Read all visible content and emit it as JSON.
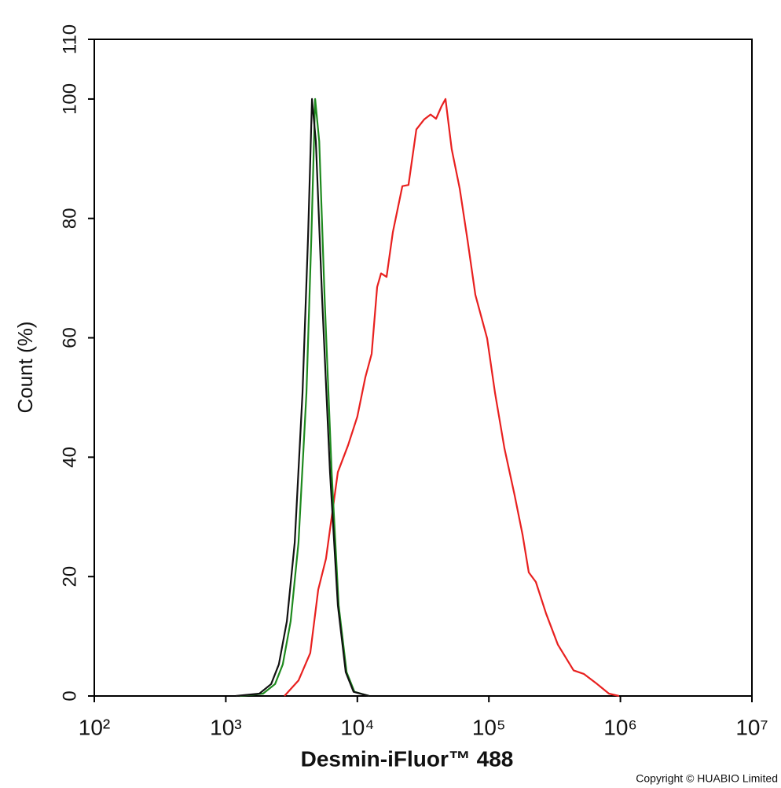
{
  "chart_data": {
    "type": "line",
    "x_label": "Desmin-iFluor™ 488",
    "y_label": "Count  (%)",
    "footnote": "Copyright © HUABIO Limited",
    "xlog": true,
    "xlim": [
      100,
      10000000
    ],
    "ylim": [
      0,
      110
    ],
    "xticks": [
      {
        "value": 100,
        "label": "10²"
      },
      {
        "value": 1000,
        "label": "10³"
      },
      {
        "value": 10000,
        "label": "10⁴"
      },
      {
        "value": 100000,
        "label": "10⁵"
      },
      {
        "value": 1000000,
        "label": "10⁶"
      },
      {
        "value": 10000000,
        "label": "10⁷"
      }
    ],
    "yticks": [
      0,
      20,
      40,
      60,
      80,
      100,
      110
    ],
    "series": [
      {
        "color": "#e8201f",
        "x": [
          2790,
          3570,
          4390,
          5040,
          5780,
          7110,
          8500,
          10000,
          11500,
          12850,
          14150,
          15150,
          16670,
          18620,
          21980,
          24500,
          28100,
          32270,
          36040,
          39700,
          43700,
          46800,
          52200,
          60000,
          68800,
          78900,
          97000,
          111500,
          131300,
          157000,
          180300,
          201000,
          227500,
          272300,
          334700,
          440500,
          527000,
          665700,
          818000,
          977000
        ],
        "values": [
          0,
          2.6,
          7.2,
          17.8,
          23,
          37.5,
          42,
          46.8,
          53.4,
          57.3,
          68.5,
          70.8,
          70.2,
          77.7,
          85.4,
          85.6,
          94.9,
          96.6,
          97.4,
          96.7,
          98.8,
          100,
          91.6,
          85,
          76.4,
          67.2,
          59.9,
          50.7,
          41.5,
          33.6,
          27,
          20.7,
          19.1,
          13.8,
          8.6,
          4.3,
          3.7,
          2,
          0.4,
          0
        ]
      },
      {
        "color": "#1e8a1e",
        "x": [
          1270,
          1920,
          2370,
          2710,
          3110,
          3570,
          4100,
          4470,
          4780,
          5130,
          5640,
          6380,
          7210,
          8280,
          9500,
          12330
        ],
        "values": [
          0,
          0.4,
          2,
          5.3,
          12.5,
          25.7,
          50.7,
          77,
          100,
          92.9,
          66.5,
          37.5,
          15.2,
          4,
          0.7,
          0
        ]
      },
      {
        "color": "#111111",
        "x": [
          1190,
          1800,
          2210,
          2530,
          2910,
          3340,
          3830,
          4220,
          4520,
          4840,
          5400,
          6200,
          7110,
          8160,
          9360,
          12330
        ],
        "values": [
          0,
          0.4,
          2,
          5.3,
          12.5,
          25.7,
          50.7,
          77,
          100,
          92.9,
          66.5,
          37.5,
          15.2,
          4,
          0.7,
          0
        ]
      }
    ]
  }
}
